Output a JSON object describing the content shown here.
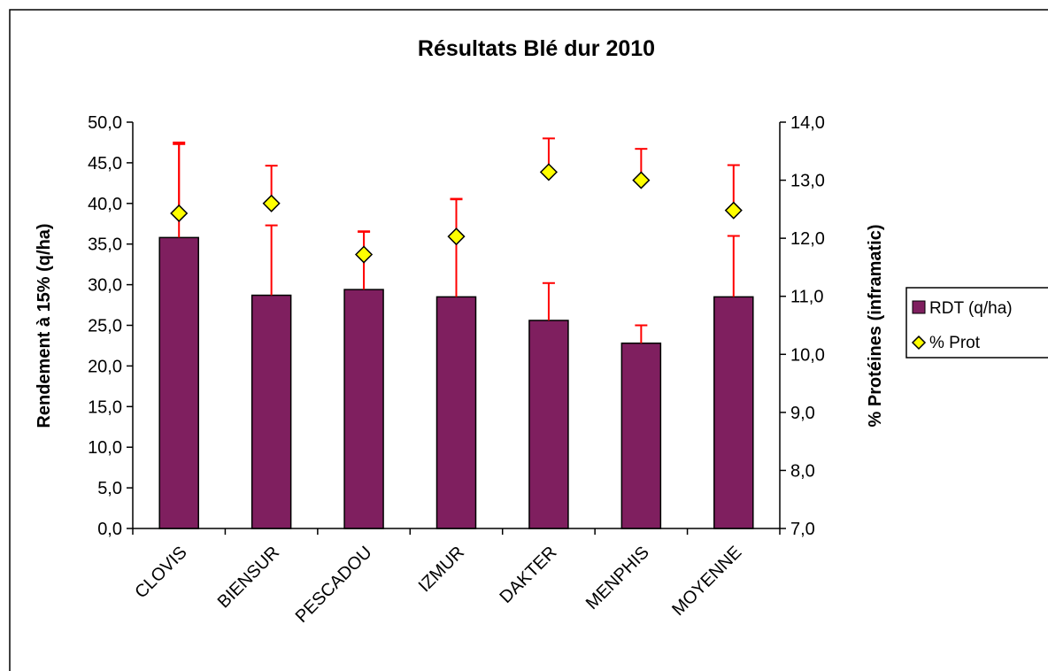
{
  "chart_data": {
    "type": "bar",
    "title": "Résultats Blé dur 2010",
    "categories": [
      "CLOVIS",
      "BIENSUR",
      "PESCADOU",
      "IZMUR",
      "DAKTER",
      "MENPHIS",
      "MOYENNE"
    ],
    "series": [
      {
        "name": "RDT (q/ha)",
        "type": "bar",
        "axis": "left",
        "color": "#7f1f5f",
        "values": [
          35.8,
          28.7,
          29.4,
          28.5,
          25.6,
          22.8,
          28.5
        ],
        "error_upper": [
          47.3,
          37.3,
          36.5,
          40.5,
          30.2,
          25.0,
          36.0
        ]
      },
      {
        "name": "% Prot",
        "type": "scatter",
        "axis": "right",
        "color": "#ffff00",
        "values": [
          12.43,
          12.6,
          11.72,
          12.03,
          13.14,
          13.0,
          12.48
        ],
        "error_upper": [
          13.65,
          13.25,
          12.12,
          12.68,
          13.72,
          13.54,
          13.26
        ]
      }
    ],
    "error_bar_color": "#ff0000",
    "ylabel": "Rendement à 15% (q/ha)",
    "ylabel_right": "% Protéines (inframatic)",
    "ylim": [
      0,
      50
    ],
    "ylim_right": [
      7,
      14
    ],
    "yticks": [
      "0,0",
      "5,0",
      "10,0",
      "15,0",
      "20,0",
      "25,0",
      "30,0",
      "35,0",
      "40,0",
      "45,0",
      "50,0"
    ],
    "yticks_right": [
      "7,0",
      "8,0",
      "9,0",
      "10,0",
      "11,0",
      "12,0",
      "13,0",
      "14,0"
    ],
    "legend_position": "right",
    "grid": false
  }
}
